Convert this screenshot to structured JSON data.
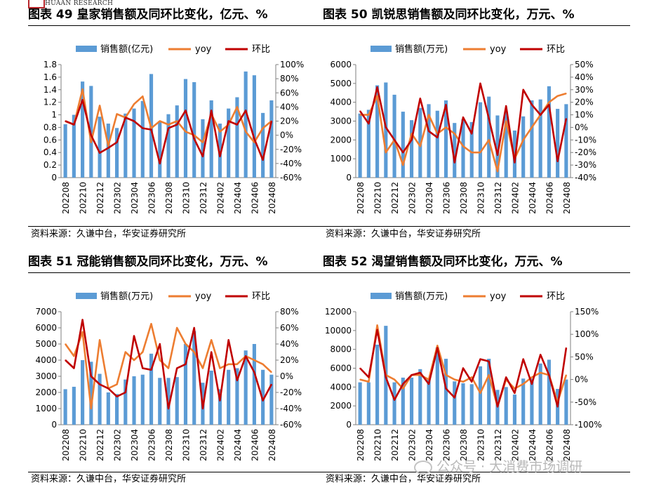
{
  "header": {
    "logo_text": "HUAAN RESEARCH"
  },
  "watermark": {
    "text": "公众号 · 大消费市场调研"
  },
  "legend_labels": {
    "yoy": "yoy",
    "mom": "环比"
  },
  "colors": {
    "bar": "#5b9bd5",
    "yoy": "#ed7d31",
    "mom": "#c00000"
  },
  "charts": [
    {
      "title": "图表 49 皇家销售额及同环比变化，亿元、%",
      "source": "资料来源：久谦中台，华安证券研究所",
      "chart_data": {
        "type": "bar+line",
        "bar_name": "销售额(亿元)",
        "categories": [
          "202208",
          "202209",
          "202210",
          "202211",
          "202212",
          "202301",
          "202302",
          "202303",
          "202304",
          "202305",
          "202306",
          "202307",
          "202308",
          "202309",
          "202310",
          "202311",
          "202312",
          "202401",
          "202402",
          "202403",
          "202404",
          "202405",
          "202406",
          "202407",
          "202408"
        ],
        "x_tick_labels": [
          "202208",
          "",
          "202210",
          "",
          "202212",
          "",
          "202302",
          "",
          "202304",
          "",
          "202306",
          "",
          "202308",
          "",
          "202310",
          "",
          "202312",
          "",
          "202402",
          "",
          "202404",
          "",
          "202406",
          "",
          "202408"
        ],
        "bars": [
          0.85,
          1.0,
          1.53,
          1.46,
          0.97,
          0.86,
          0.79,
          1.02,
          1.1,
          1.22,
          1.65,
          0.9,
          1.01,
          1.15,
          1.57,
          1.52,
          0.93,
          1.23,
          0.86,
          1.1,
          1.28,
          1.69,
          1.63,
          1.03,
          1.23
        ],
        "yoy": [
          20,
          15,
          65,
          -10,
          42,
          -15,
          30,
          25,
          44,
          55,
          10,
          20,
          15,
          20,
          5,
          0,
          -10,
          30,
          5,
          15,
          40,
          5,
          -10,
          10,
          20
        ],
        "mom": [
          20,
          15,
          50,
          0,
          -25,
          -18,
          -10,
          25,
          20,
          10,
          8,
          -40,
          10,
          15,
          35,
          -5,
          -30,
          35,
          -30,
          20,
          15,
          35,
          -5,
          -35,
          20
        ],
        "y_left": {
          "min": 0,
          "max": 1.8,
          "step": 0.2,
          "ticks": [
            "0",
            "0.2",
            "0.4",
            "0.6",
            "0.8",
            "1",
            "1.2",
            "1.4",
            "1.6",
            "1.8"
          ]
        },
        "y_right": {
          "min": -60,
          "max": 100,
          "step": 20,
          "ticks": [
            "-60%",
            "-40%",
            "-20%",
            "0%",
            "20%",
            "40%",
            "60%",
            "80%",
            "100%"
          ]
        }
      }
    },
    {
      "title": "图表 50 凯锐思销售额及同环比变化，万元、%",
      "source": "资料来源：久谦中台，华安证券研究所",
      "chart_data": {
        "type": "bar+line",
        "bar_name": "销售额(万元)",
        "categories": [
          "202208",
          "202209",
          "202210",
          "202211",
          "202212",
          "202301",
          "202302",
          "202303",
          "202304",
          "202305",
          "202306",
          "202307",
          "202308",
          "202309",
          "202310",
          "202311",
          "202312",
          "202401",
          "202402",
          "202403",
          "202404",
          "202405",
          "202406",
          "202407",
          "202408"
        ],
        "x_tick_labels": [
          "202208",
          "",
          "202210",
          "",
          "202212",
          "",
          "202302",
          "",
          "202304",
          "",
          "202306",
          "",
          "202308",
          "",
          "202310",
          "",
          "202312",
          "",
          "202402",
          "",
          "202404",
          "",
          "202406",
          "",
          "202408"
        ],
        "bars": [
          3400,
          3600,
          4900,
          5050,
          4400,
          3500,
          3050,
          3700,
          3900,
          3550,
          4100,
          2900,
          3100,
          2950,
          4000,
          4300,
          3300,
          3500,
          2500,
          3250,
          4100,
          4150,
          4850,
          3650,
          3900
        ],
        "yoy": [
          10,
          10,
          25,
          -20,
          -10,
          -30,
          -5,
          -15,
          10,
          -5,
          0,
          -5,
          -15,
          -20,
          -20,
          -10,
          -35,
          5,
          -25,
          -10,
          0,
          10,
          20,
          25,
          27
        ],
        "mom": [
          13,
          3,
          32,
          0,
          -10,
          -20,
          -10,
          23,
          -3,
          -8,
          18,
          -28,
          8,
          -5,
          35,
          7,
          -22,
          17,
          -28,
          30,
          18,
          10,
          18,
          -27,
          7
        ],
        "y_left": {
          "min": 0,
          "max": 6000,
          "step": 1000,
          "ticks": [
            "0",
            "1000",
            "2000",
            "3000",
            "4000",
            "5000",
            "6000"
          ]
        },
        "y_right": {
          "min": -40,
          "max": 50,
          "step": 10,
          "ticks": [
            "-40%",
            "-30%",
            "-20%",
            "-10%",
            "0%",
            "10%",
            "20%",
            "30%",
            "40%",
            "50%"
          ]
        }
      }
    },
    {
      "title": "图表 51 冠能销售额及同环比变化，万元、%",
      "source": "资料来源：久谦中台，华安证券研究所",
      "chart_data": {
        "type": "bar+line",
        "bar_name": "销售额(万元)",
        "categories": [
          "202208",
          "202209",
          "202210",
          "202211",
          "202212",
          "202301",
          "202302",
          "202303",
          "202304",
          "202305",
          "202306",
          "202307",
          "202308",
          "202309",
          "202310",
          "202311",
          "202312",
          "202401",
          "202402",
          "202403",
          "202404",
          "202405",
          "202406",
          "202407",
          "202408"
        ],
        "x_tick_labels": [
          "202208",
          "",
          "202210",
          "",
          "202212",
          "",
          "202302",
          "",
          "202304",
          "",
          "202306",
          "",
          "202308",
          "",
          "202310",
          "",
          "202312",
          "",
          "202402",
          "",
          "202404",
          "",
          "202406",
          "",
          "202408"
        ],
        "bars": [
          2200,
          2350,
          4000,
          3900,
          3150,
          2000,
          1900,
          2800,
          3000,
          3100,
          4400,
          2900,
          2900,
          2950,
          5000,
          5800,
          2600,
          3350,
          2200,
          3400,
          3500,
          4600,
          5000,
          3400,
          3100
        ],
        "yoy": [
          40,
          25,
          55,
          -40,
          45,
          -15,
          -10,
          30,
          20,
          30,
          65,
          20,
          10,
          60,
          40,
          30,
          10,
          45,
          10,
          15,
          15,
          25,
          20,
          15,
          5
        ],
        "mom": [
          20,
          10,
          70,
          0,
          -10,
          -15,
          -25,
          -20,
          50,
          10,
          8,
          40,
          -40,
          10,
          15,
          60,
          -40,
          30,
          -30,
          45,
          -5,
          25,
          5,
          -30,
          -10
        ],
        "y_left": {
          "min": 0,
          "max": 7000,
          "step": 1000,
          "ticks": [
            "0",
            "1000",
            "2000",
            "3000",
            "4000",
            "5000",
            "6000",
            "7000"
          ]
        },
        "y_right": {
          "min": -60,
          "max": 80,
          "step": 20,
          "ticks": [
            "-60%",
            "-40%",
            "-20%",
            "0%",
            "20%",
            "40%",
            "60%",
            "80%"
          ]
        }
      }
    },
    {
      "title": "图表 52 渴望销售额及同环比变化，万元、%",
      "source": "资料来源：久谦中台，华安证券研究所",
      "chart_data": {
        "type": "bar+line",
        "bar_name": "销售额(万元)",
        "categories": [
          "202208",
          "202209",
          "202210",
          "202211",
          "202212",
          "202301",
          "202302",
          "202303",
          "202304",
          "202305",
          "202306",
          "202307",
          "202308",
          "202309",
          "202310",
          "202311",
          "202312",
          "202401",
          "202402",
          "202403",
          "202404",
          "202405",
          "202406",
          "202407",
          "202408"
        ],
        "x_tick_labels": [
          "202208",
          "",
          "202210",
          "",
          "202212",
          "",
          "202302",
          "",
          "202304",
          "",
          "202306",
          "",
          "202308",
          "",
          "202310",
          "",
          "202312",
          "",
          "202402",
          "",
          "202404",
          "",
          "202406",
          "",
          "202408"
        ],
        "bars": [
          4500,
          4500,
          8500,
          10500,
          4500,
          5000,
          5000,
          5900,
          4900,
          8200,
          7000,
          4600,
          4400,
          4300,
          6200,
          7000,
          3700,
          4000,
          3200,
          4900,
          4900,
          6500,
          6900,
          3800,
          4800
        ],
        "yoy": [
          0,
          -5,
          120,
          10,
          0,
          -20,
          10,
          10,
          0,
          75,
          10,
          0,
          -5,
          5,
          -30,
          10,
          -60,
          0,
          -20,
          -10,
          5,
          15,
          10,
          -50,
          10
        ],
        "mom": [
          25,
          5,
          110,
          5,
          -45,
          -10,
          10,
          15,
          -10,
          70,
          -20,
          -40,
          25,
          -5,
          45,
          40,
          -60,
          5,
          -30,
          45,
          -10,
          55,
          10,
          -60,
          70
        ],
        "y_left": {
          "min": 0,
          "max": 12000,
          "step": 2000,
          "ticks": [
            "0",
            "2000",
            "4000",
            "6000",
            "8000",
            "10000",
            "12000"
          ]
        },
        "y_right": {
          "min": -100,
          "max": 150,
          "step": 50,
          "ticks": [
            "-100%",
            "-50%",
            "0%",
            "50%",
            "100%",
            "150%"
          ]
        }
      }
    }
  ]
}
